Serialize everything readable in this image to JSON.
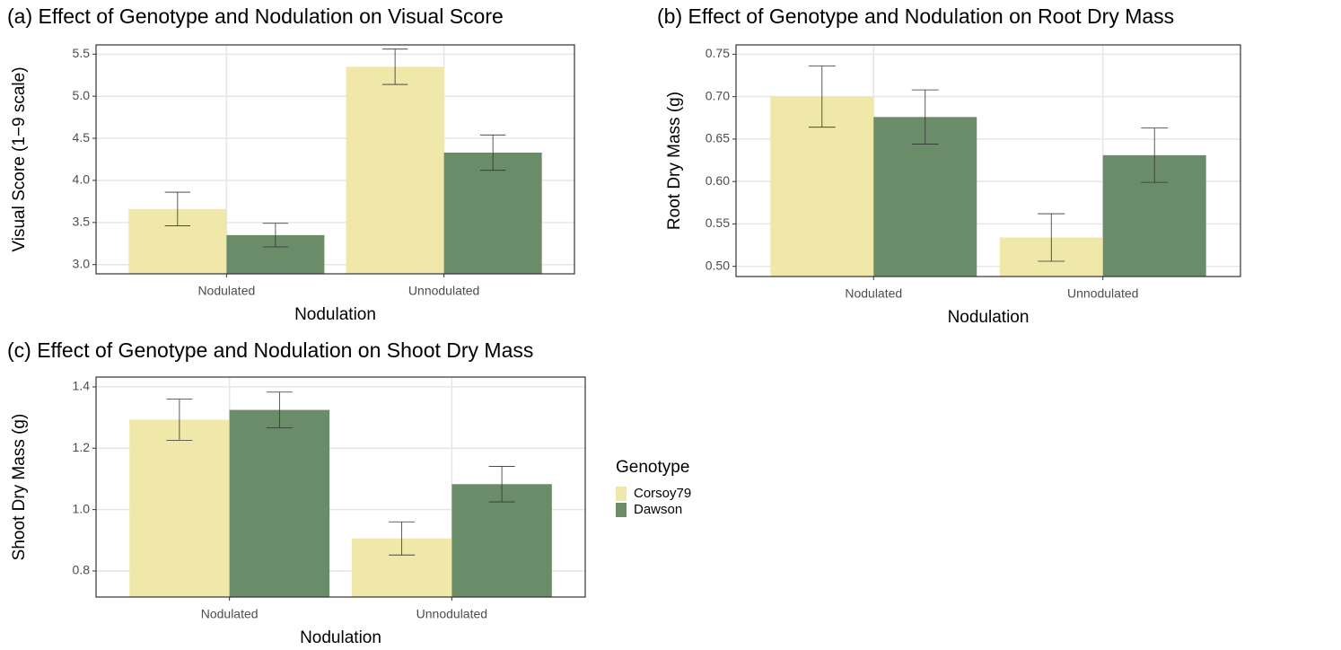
{
  "chart_data": [
    {
      "type": "bar",
      "title": "(a) Effect of Genotype and Nodulation on Visual Score",
      "xlabel": "Nodulation",
      "ylabel": "Visual Score (1−9 scale)",
      "categories": [
        "Nodulated",
        "Unnodulated"
      ],
      "series": [
        {
          "name": "Corsoy79",
          "color": "#efe8a8",
          "values": [
            3.66,
            5.35
          ],
          "errors": [
            0.2,
            0.21
          ]
        },
        {
          "name": "Dawson",
          "color": "#6a8c69",
          "values": [
            3.35,
            4.33
          ],
          "errors": [
            0.14,
            0.21
          ]
        }
      ],
      "ylim": [
        2.89,
        5.61
      ],
      "yticks": [
        {
          "value": 3,
          "label": "3.0"
        },
        3.5,
        {
          "value": 4,
          "label": "4.0"
        },
        4.5,
        {
          "value": 5,
          "label": "5.0"
        },
        5.5
      ],
      "grid": true
    },
    {
      "type": "bar",
      "title": "(b) Effect of Genotype and Nodulation on Root Dry Mass",
      "xlabel": "Nodulation",
      "ylabel": "Root Dry Mass (g)",
      "categories": [
        "Nodulated",
        "Unnodulated"
      ],
      "series": [
        {
          "name": "Corsoy79",
          "color": "#efe8a8",
          "values": [
            0.7,
            0.534
          ],
          "errors": [
            0.036,
            0.028
          ]
        },
        {
          "name": "Dawson",
          "color": "#6a8c69",
          "values": [
            0.676,
            0.631
          ],
          "errors": [
            0.032,
            0.032
          ]
        }
      ],
      "ylim": [
        0.488,
        0.761
      ],
      "yticks": [
        {
          "value": 0.5,
          "label": "0.50"
        },
        0.55,
        {
          "value": 0.6,
          "label": "0.60"
        },
        0.65,
        {
          "value": 0.7,
          "label": "0.70"
        },
        0.75
      ],
      "grid": true
    },
    {
      "type": "bar",
      "title": "(c) Effect of Genotype and Nodulation on Shoot Dry Mass",
      "xlabel": "Nodulation",
      "ylabel": "Shoot Dry Mass (g)",
      "categories": [
        "Nodulated",
        "Unnodulated"
      ],
      "series": [
        {
          "name": "Corsoy79",
          "color": "#efe8a8",
          "values": [
            1.293,
            0.906
          ],
          "errors": [
            0.067,
            0.054
          ]
        },
        {
          "name": "Dawson",
          "color": "#6a8c69",
          "values": [
            1.325,
            1.083
          ],
          "errors": [
            0.058,
            0.058
          ]
        }
      ],
      "ylim": [
        0.715,
        1.432
      ],
      "yticks": [
        0.8,
        {
          "value": 1,
          "label": "1.0"
        },
        1.2,
        1.4
      ],
      "grid": true,
      "legend_title": "Genotype"
    }
  ]
}
